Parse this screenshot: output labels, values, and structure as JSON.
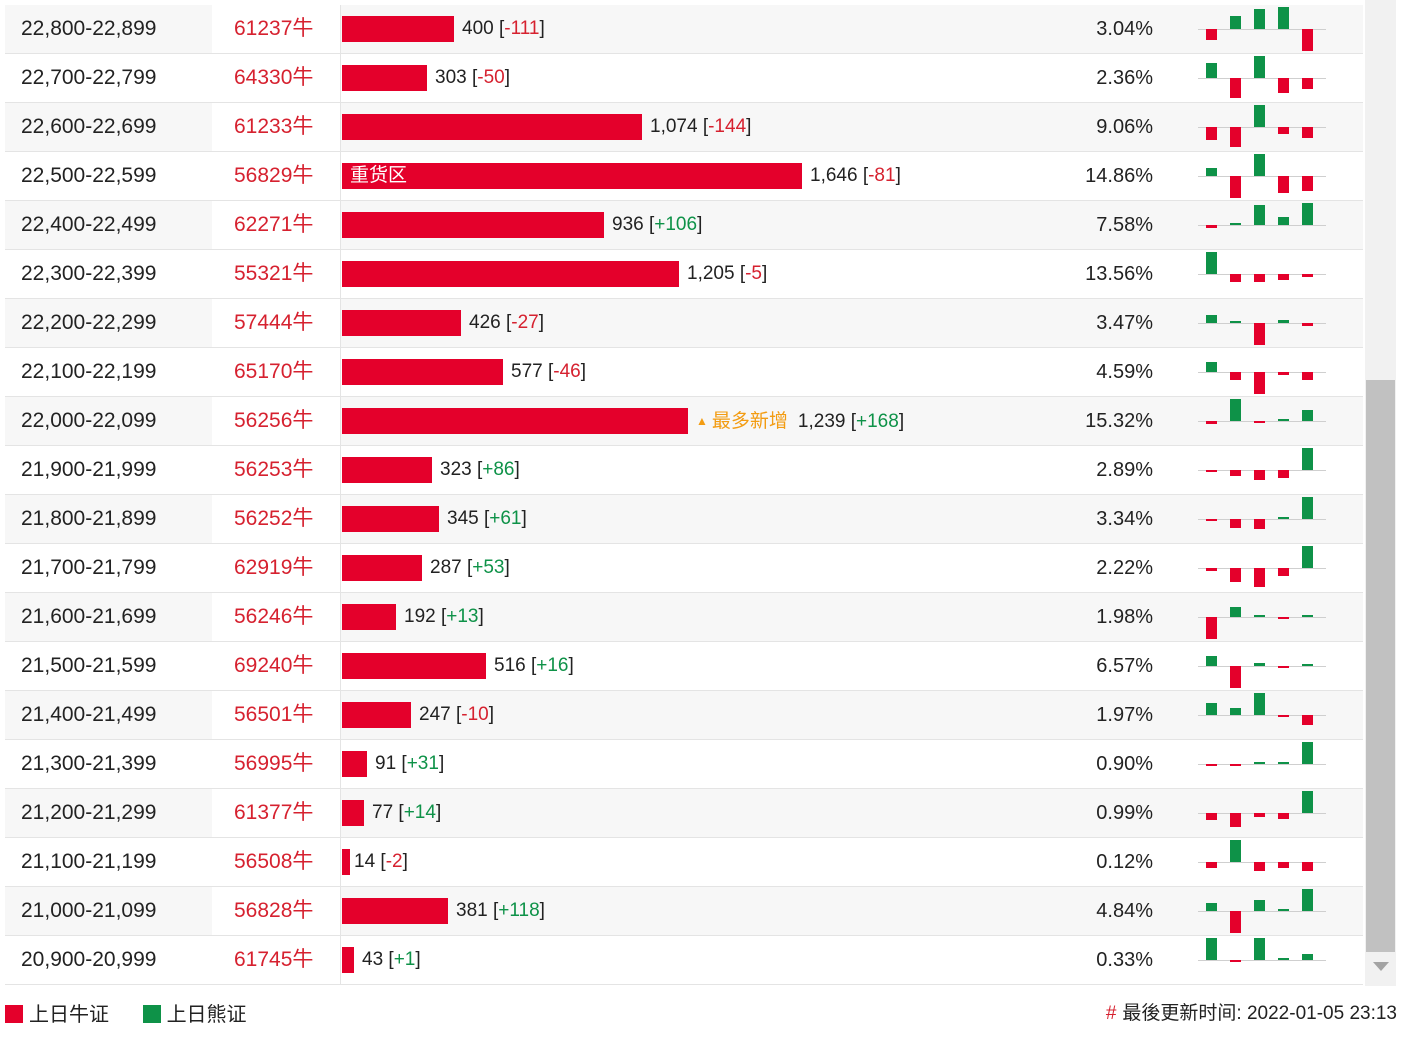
{
  "rows": [
    {
      "range": "22,800-22,899",
      "code": "61237牛",
      "value": "400",
      "change": "-111",
      "pct": "3.04%",
      "bar": 0.243,
      "spark": [
        -0.5,
        0.6,
        0.9,
        1.0,
        -1.0
      ]
    },
    {
      "range": "22,700-22,799",
      "code": "64330牛",
      "value": "303",
      "change": "-50",
      "pct": "2.36%",
      "bar": 0.184,
      "spark": [
        0.7,
        -0.9,
        1.0,
        -0.7,
        -0.5
      ]
    },
    {
      "range": "22,600-22,699",
      "code": "61233牛",
      "value": "1,074",
      "change": "-144",
      "pct": "9.06%",
      "bar": 0.653,
      "spark": [
        -0.6,
        -0.9,
        1.0,
        -0.3,
        -0.5
      ]
    },
    {
      "range": "22,500-22,599",
      "code": "56829牛",
      "value": "1,646",
      "change": "-81",
      "pct": "14.86%",
      "bar": 1.0,
      "note": "重货区",
      "spark": [
        0.35,
        -1.0,
        1.0,
        -0.75,
        -0.7
      ]
    },
    {
      "range": "22,400-22,499",
      "code": "62271牛",
      "value": "936",
      "change": "+106",
      "pct": "7.58%",
      "bar": 0.569,
      "spark": [
        -0.15,
        0.1,
        0.9,
        0.35,
        1.0
      ]
    },
    {
      "range": "22,300-22,399",
      "code": "55321牛",
      "value": "1,205",
      "change": "-5",
      "pct": "13.56%",
      "bar": 0.732,
      "spark": [
        1.0,
        -0.35,
        -0.35,
        -0.25,
        -0.15
      ]
    },
    {
      "range": "22,200-22,299",
      "code": "57444牛",
      "value": "426",
      "change": "-27",
      "pct": "3.47%",
      "bar": 0.259,
      "spark": [
        0.35,
        0.1,
        -1.0,
        0.15,
        -0.15
      ]
    },
    {
      "range": "22,100-22,199",
      "code": "65170牛",
      "value": "577",
      "change": "-46",
      "pct": "4.59%",
      "bar": 0.351,
      "spark": [
        0.45,
        -0.35,
        -1.0,
        -0.15,
        -0.35
      ]
    },
    {
      "range": "22,000-22,099",
      "code": "56256牛",
      "value": "1,239",
      "change": "+168",
      "pct": "15.32%",
      "bar": 0.753,
      "note": "最多新增",
      "spark": [
        -0.15,
        1.0,
        -0.05,
        0.05,
        0.5
      ]
    },
    {
      "range": "21,900-21,999",
      "code": "56253牛",
      "value": "323",
      "change": "+86",
      "pct": "2.89%",
      "bar": 0.196,
      "spark": [
        -0.1,
        -0.25,
        -0.45,
        -0.35,
        1.0
      ]
    },
    {
      "range": "21,800-21,899",
      "code": "56252牛",
      "value": "345",
      "change": "+61",
      "pct": "3.34%",
      "bar": 0.21,
      "spark": [
        -0.1,
        -0.4,
        -0.45,
        0.0,
        1.0
      ]
    },
    {
      "range": "21,700-21,799",
      "code": "62919牛",
      "value": "287",
      "change": "+53",
      "pct": "2.22%",
      "bar": 0.174,
      "spark": [
        -0.15,
        -0.65,
        -0.85,
        -0.35,
        1.0
      ]
    },
    {
      "range": "21,600-21,699",
      "code": "56246牛",
      "value": "192",
      "change": "+13",
      "pct": "1.98%",
      "bar": 0.117,
      "spark": [
        -1.0,
        0.45,
        0.05,
        -0.1,
        0.1
      ]
    },
    {
      "range": "21,500-21,599",
      "code": "69240牛",
      "value": "516",
      "change": "+16",
      "pct": "6.57%",
      "bar": 0.313,
      "spark": [
        0.45,
        -1.0,
        0.15,
        -0.05,
        0.05
      ]
    },
    {
      "range": "21,400-21,499",
      "code": "56501牛",
      "value": "247",
      "change": "-10",
      "pct": "1.97%",
      "bar": 0.15,
      "spark": [
        0.55,
        0.3,
        1.0,
        -0.05,
        -0.45
      ]
    },
    {
      "range": "21,300-21,399",
      "code": "56995牛",
      "value": "91",
      "change": "+31",
      "pct": "0.90%",
      "bar": 0.055,
      "spark": [
        -0.05,
        -0.05,
        0.05,
        0.0,
        1.0
      ]
    },
    {
      "range": "21,200-21,299",
      "code": "61377牛",
      "value": "77",
      "change": "+14",
      "pct": "0.99%",
      "bar": 0.047,
      "spark": [
        -0.3,
        -0.65,
        -0.2,
        -0.25,
        1.0
      ]
    },
    {
      "range": "21,100-21,199",
      "code": "56508牛",
      "value": "14",
      "change": "-2",
      "pct": "0.12%",
      "bar": 0.009,
      "spark": [
        -0.25,
        1.0,
        -0.4,
        -0.25,
        -0.4
      ]
    },
    {
      "range": "21,000-21,099",
      "code": "56828牛",
      "value": "381",
      "change": "+118",
      "pct": "4.84%",
      "bar": 0.231,
      "spark": [
        0.35,
        -1.0,
        0.5,
        0.1,
        1.0
      ]
    },
    {
      "range": "20,900-20,999",
      "code": "61745牛",
      "value": "43",
      "change": "+1",
      "pct": "0.33%",
      "bar": 0.026,
      "spark": [
        1.0,
        -0.05,
        1.0,
        0.0,
        0.25
      ]
    }
  ],
  "legend": {
    "bull": "上日牛证",
    "bear": "上日熊证"
  },
  "footer": {
    "hash": "#",
    "updated_label": "最後更新时间:",
    "updated_time": "2022-01-05 23:13"
  },
  "colors": {
    "bull": "#e4002b",
    "bear": "#0e9248",
    "note": "#f39c12",
    "code": "#d6212f"
  },
  "icons": {
    "note_marker": "triangle-up-icon",
    "scroll_down": "chevron-down-icon"
  }
}
